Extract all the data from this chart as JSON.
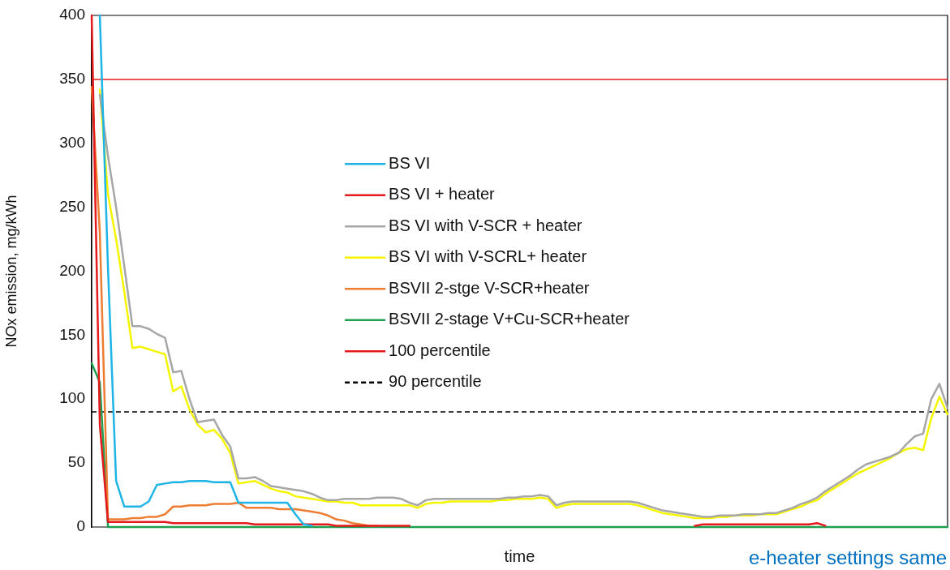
{
  "chart_data": {
    "type": "line",
    "xlabel": "time",
    "ylabel": "NOx emission, mg/kWh",
    "ylim": [
      0,
      400
    ],
    "yticks": [
      0,
      50,
      100,
      150,
      200,
      250,
      300,
      350,
      400
    ],
    "tick_labels": "y",
    "legend": "center",
    "line_style": "solid",
    "categories": [
      null,
      null,
      null,
      null,
      null,
      null,
      null,
      null,
      null,
      null,
      null,
      null,
      null,
      null,
      null,
      null,
      null,
      null,
      null,
      null,
      null,
      null,
      null,
      null,
      null,
      null,
      null,
      null,
      null,
      null,
      null,
      null,
      null,
      null,
      null,
      null,
      null,
      null,
      null,
      null,
      null,
      null,
      null,
      null,
      null,
      null,
      null,
      null,
      null,
      null,
      null,
      null,
      null,
      null,
      null,
      null,
      null,
      null,
      null,
      null,
      null,
      null,
      null,
      null,
      null,
      null,
      null,
      null,
      null,
      null,
      null,
      null,
      null,
      null,
      null,
      null,
      null,
      null,
      null,
      null,
      null,
      null,
      null,
      null,
      null,
      null,
      null,
      null,
      null,
      null,
      null,
      null,
      null,
      null,
      null,
      null,
      null,
      null,
      null,
      null,
      null,
      null,
      null,
      null,
      null,
      null
    ],
    "annotations": [
      "e-heater settings same"
    ],
    "ref_lines": [
      {
        "axis": "y",
        "value": 350,
        "label": "100 percentile",
        "color": "#e41a1c",
        "line_style": "solid"
      },
      {
        "axis": "y",
        "value": 90,
        "label": "90 percentile",
        "color": "#000000",
        "line_style": "dashed"
      }
    ],
    "series": [
      {
        "name": "BS VI",
        "color": "#1fb4e6",
        "values": [
          null,
          400,
          203,
          36,
          16,
          16,
          16,
          20,
          33,
          34,
          35,
          35,
          36,
          36,
          36,
          35,
          35,
          35,
          19,
          19,
          19,
          19,
          19,
          19,
          19,
          10,
          2,
          1,
          null,
          null,
          null,
          null,
          null,
          null,
          null,
          null,
          null,
          null,
          null,
          null,
          null,
          null,
          null,
          null,
          null,
          null,
          null,
          null,
          null,
          null,
          null,
          null,
          null,
          null,
          null,
          null,
          null,
          null,
          null,
          null,
          null,
          null,
          null,
          null,
          null,
          null,
          null,
          null,
          null,
          null,
          null,
          null,
          null,
          null,
          null,
          null,
          null,
          null,
          null,
          null,
          null,
          null,
          null,
          null,
          null,
          null,
          null,
          null,
          null,
          null,
          null,
          null,
          null,
          null,
          null,
          null,
          null,
          null,
          null,
          null,
          null,
          null,
          null,
          null,
          null,
          null
        ]
      },
      {
        "name": "BS VI + heater",
        "color": "#e41a1c",
        "values": [
          400,
          80,
          4,
          4,
          4,
          4,
          4,
          4,
          4,
          4,
          3,
          3,
          3,
          3,
          3,
          3,
          3,
          3,
          3,
          3,
          2,
          2,
          2,
          2,
          2,
          2,
          2,
          2,
          2,
          2,
          1,
          1,
          1,
          1,
          1,
          1,
          1,
          1,
          1,
          1,
          null,
          null,
          null,
          null,
          null,
          null,
          null,
          null,
          null,
          null,
          null,
          null,
          null,
          null,
          null,
          null,
          null,
          null,
          null,
          null,
          null,
          null,
          null,
          null,
          null,
          null,
          null,
          null,
          null,
          null,
          null,
          null,
          null,
          null,
          1,
          2,
          2,
          2,
          2,
          2,
          2,
          2,
          2,
          2,
          2,
          2,
          2,
          2,
          2,
          3,
          1,
          null,
          null,
          null,
          null,
          null,
          null,
          null,
          null,
          null,
          null,
          null,
          null,
          null,
          null,
          null
        ]
      },
      {
        "name": "BS VI with V-SCR + heater",
        "color": "#a6a6a6",
        "values": [
          null,
          338,
          290,
          250,
          204,
          157,
          157,
          155,
          151,
          148,
          121,
          122,
          100,
          82,
          83,
          84,
          72,
          63,
          38,
          38,
          39,
          36,
          32,
          31,
          30,
          29,
          28,
          26,
          23,
          21,
          21,
          22,
          22,
          22,
          22,
          23,
          23,
          23,
          22,
          19,
          17,
          21,
          22,
          22,
          22,
          22,
          22,
          22,
          22,
          22,
          22,
          23,
          23,
          24,
          24,
          25,
          24,
          17,
          19,
          20,
          20,
          20,
          20,
          20,
          20,
          20,
          20,
          19,
          17,
          15,
          13,
          12,
          11,
          10,
          9,
          8,
          8,
          9,
          9,
          9,
          10,
          10,
          10,
          11,
          11,
          13,
          15,
          18,
          20,
          23,
          28,
          32,
          36,
          40,
          45,
          49,
          51,
          53,
          55,
          58,
          65,
          71,
          73,
          100,
          112,
          93
        ]
      },
      {
        "name": "BS VI with V-SCRL+ heater",
        "color": "#f5f500",
        "values": [
          null,
          342,
          260,
          225,
          184,
          140,
          141,
          139,
          137,
          135,
          106,
          110,
          92,
          80,
          74,
          76,
          69,
          58,
          34,
          35,
          36,
          33,
          30,
          28,
          27,
          24,
          23,
          22,
          21,
          20,
          20,
          19,
          19,
          17,
          17,
          17,
          17,
          17,
          17,
          17,
          15,
          18,
          19,
          19,
          20,
          20,
          20,
          20,
          20,
          20,
          21,
          21,
          22,
          22,
          22,
          23,
          22,
          15,
          17,
          18,
          18,
          18,
          18,
          18,
          18,
          18,
          18,
          17,
          15,
          13,
          11,
          10,
          9,
          8,
          7,
          7,
          7,
          8,
          8,
          9,
          9,
          9,
          10,
          10,
          10,
          12,
          14,
          16,
          19,
          21,
          26,
          30,
          34,
          38,
          42,
          45,
          48,
          51,
          54,
          58,
          61,
          62,
          60,
          85,
          102,
          88
        ]
      },
      {
        "name": "BSVII 2-stge V-SCR+heater",
        "color": "#ed7d31",
        "values": [
          344,
          230,
          6,
          6,
          6,
          7,
          7,
          8,
          8,
          10,
          16,
          16,
          17,
          17,
          17,
          18,
          18,
          18,
          19,
          15,
          15,
          15,
          15,
          14,
          14,
          14,
          13,
          12,
          11,
          9,
          6,
          5,
          3,
          2,
          1,
          1,
          null,
          null,
          null,
          null,
          null,
          null,
          null,
          null,
          null,
          null,
          null,
          null,
          null,
          null,
          null,
          null,
          null,
          null,
          null,
          null,
          null,
          null,
          null,
          null,
          null,
          null,
          null,
          null,
          null,
          null,
          null,
          null,
          null,
          null,
          null,
          null,
          null,
          null,
          null,
          null,
          null,
          null,
          null,
          null,
          null,
          null,
          null,
          null,
          null,
          null,
          null,
          null,
          null,
          null,
          null,
          null,
          null,
          null,
          null,
          null,
          null,
          null,
          null,
          null,
          null,
          null,
          null,
          null,
          null,
          null
        ]
      },
      {
        "name": "BSVII 2-stage V+Cu-SCR+heater",
        "color": "#1ea050",
        "values": [
          128,
          113,
          0,
          0,
          0,
          0,
          0,
          0,
          0,
          0,
          0,
          0,
          0,
          0,
          0,
          0,
          0,
          0,
          0,
          0,
          0,
          0,
          0,
          0,
          0,
          0,
          0,
          0,
          0,
          0,
          0,
          0,
          0,
          0,
          0,
          0,
          0,
          0,
          0,
          0,
          0,
          0,
          0,
          0,
          0,
          0,
          0,
          0,
          0,
          0,
          0,
          0,
          0,
          0,
          0,
          0,
          0,
          0,
          0,
          0,
          0,
          0,
          0,
          0,
          0,
          0,
          0,
          0,
          0,
          0,
          0,
          0,
          0,
          0,
          0,
          0,
          0,
          0,
          0,
          0,
          0,
          0,
          0,
          0,
          0,
          0,
          0,
          0,
          0,
          0,
          0,
          0,
          0,
          0,
          0,
          0,
          0,
          0,
          0,
          0,
          0,
          0,
          0,
          0,
          0,
          0
        ]
      }
    ]
  }
}
